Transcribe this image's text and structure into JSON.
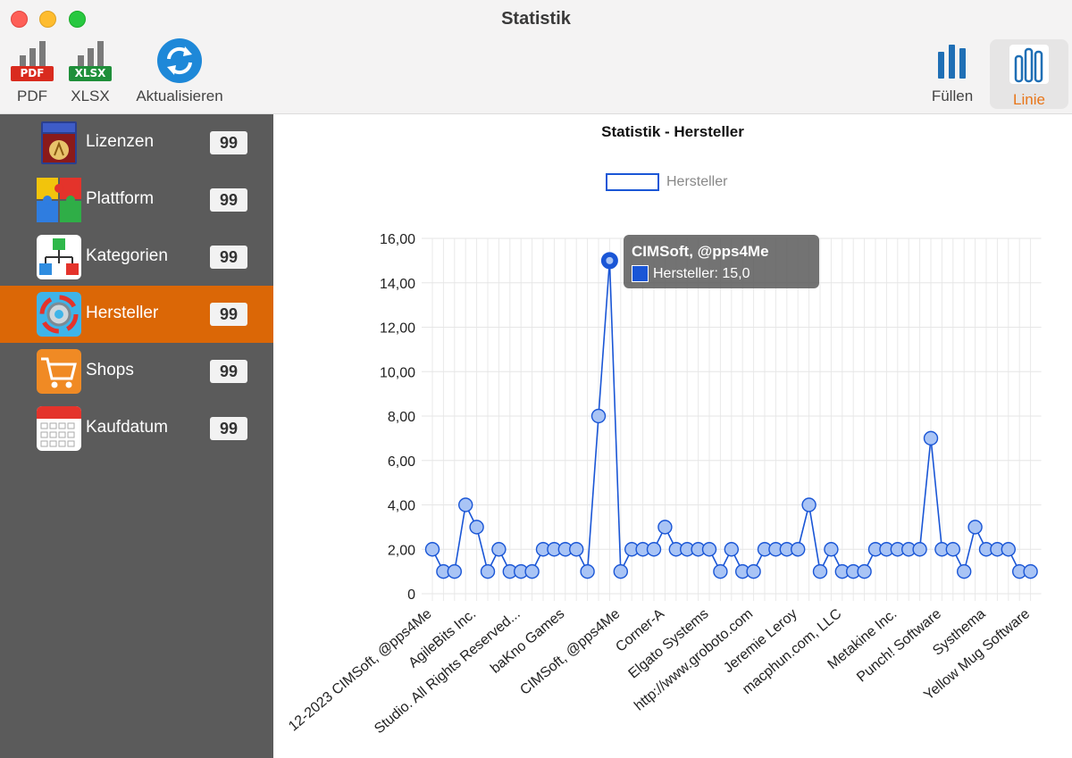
{
  "window": {
    "title": "Statistik"
  },
  "toolbar": {
    "pdf": {
      "label": "PDF",
      "tag": "PDF"
    },
    "xlsx": {
      "label": "XLSX",
      "tag": "XLSX"
    },
    "refresh": {
      "label": "Aktualisieren"
    },
    "fill": {
      "label": "Füllen"
    },
    "line": {
      "label": "Linie"
    }
  },
  "sidebar": {
    "items": [
      {
        "label": "Lizenzen",
        "badge": "99",
        "icon": "license-manager-icon"
      },
      {
        "label": "Plattform",
        "badge": "99",
        "icon": "puzzle-icon"
      },
      {
        "label": "Kategorien",
        "badge": "99",
        "icon": "hierarchy-icon"
      },
      {
        "label": "Hersteller",
        "badge": "99",
        "icon": "gear-icon",
        "selected": true
      },
      {
        "label": "Shops",
        "badge": "99",
        "icon": "shopping-cart-icon"
      },
      {
        "label": "Kaufdatum",
        "badge": "99",
        "icon": "calendar-icon"
      }
    ]
  },
  "colors": {
    "accent": "#db6706",
    "series": "#1a56d6",
    "sidebar": "#5b5b5b"
  },
  "chart_data": {
    "type": "line",
    "title": "Statistik - Hersteller",
    "series": [
      {
        "name": "Hersteller",
        "values": [
          2,
          1,
          1,
          4,
          3,
          1,
          2,
          1,
          1,
          1,
          2,
          2,
          2,
          2,
          1,
          8,
          15,
          1,
          2,
          2,
          2,
          3,
          2,
          2,
          2,
          2,
          1,
          2,
          1,
          1,
          2,
          2,
          2,
          2,
          4,
          1,
          2,
          1,
          1,
          1,
          2,
          2,
          2,
          2,
          2,
          7,
          2,
          2,
          1,
          3,
          2,
          2,
          2,
          1,
          1
        ]
      }
    ],
    "x_tick_labels": [
      "12-2023 CIMSoft, @pps4Me",
      "AgileBits Inc.",
      "Studio. All Rights Reserved...",
      "baKno Games",
      "CIMSoft, @pps4Me",
      "Corner-A",
      "Elgato Systems",
      "http://www.groboto.com",
      "Jeremie Leroy",
      "macphun.com, LLC",
      "Metakine Inc.",
      "Punch! Software",
      "Systhema",
      "Yellow Mug Software"
    ],
    "y_ticks": [
      "0",
      "2,00",
      "4,00",
      "6,00",
      "8,00",
      "10,00",
      "12,00",
      "14,00",
      "16,00"
    ],
    "ylim": [
      0,
      16
    ],
    "grid": true,
    "legend": "top-center",
    "tooltip": {
      "title": "CIMSoft, @pps4Me",
      "text": "Hersteller: 15,0"
    }
  }
}
